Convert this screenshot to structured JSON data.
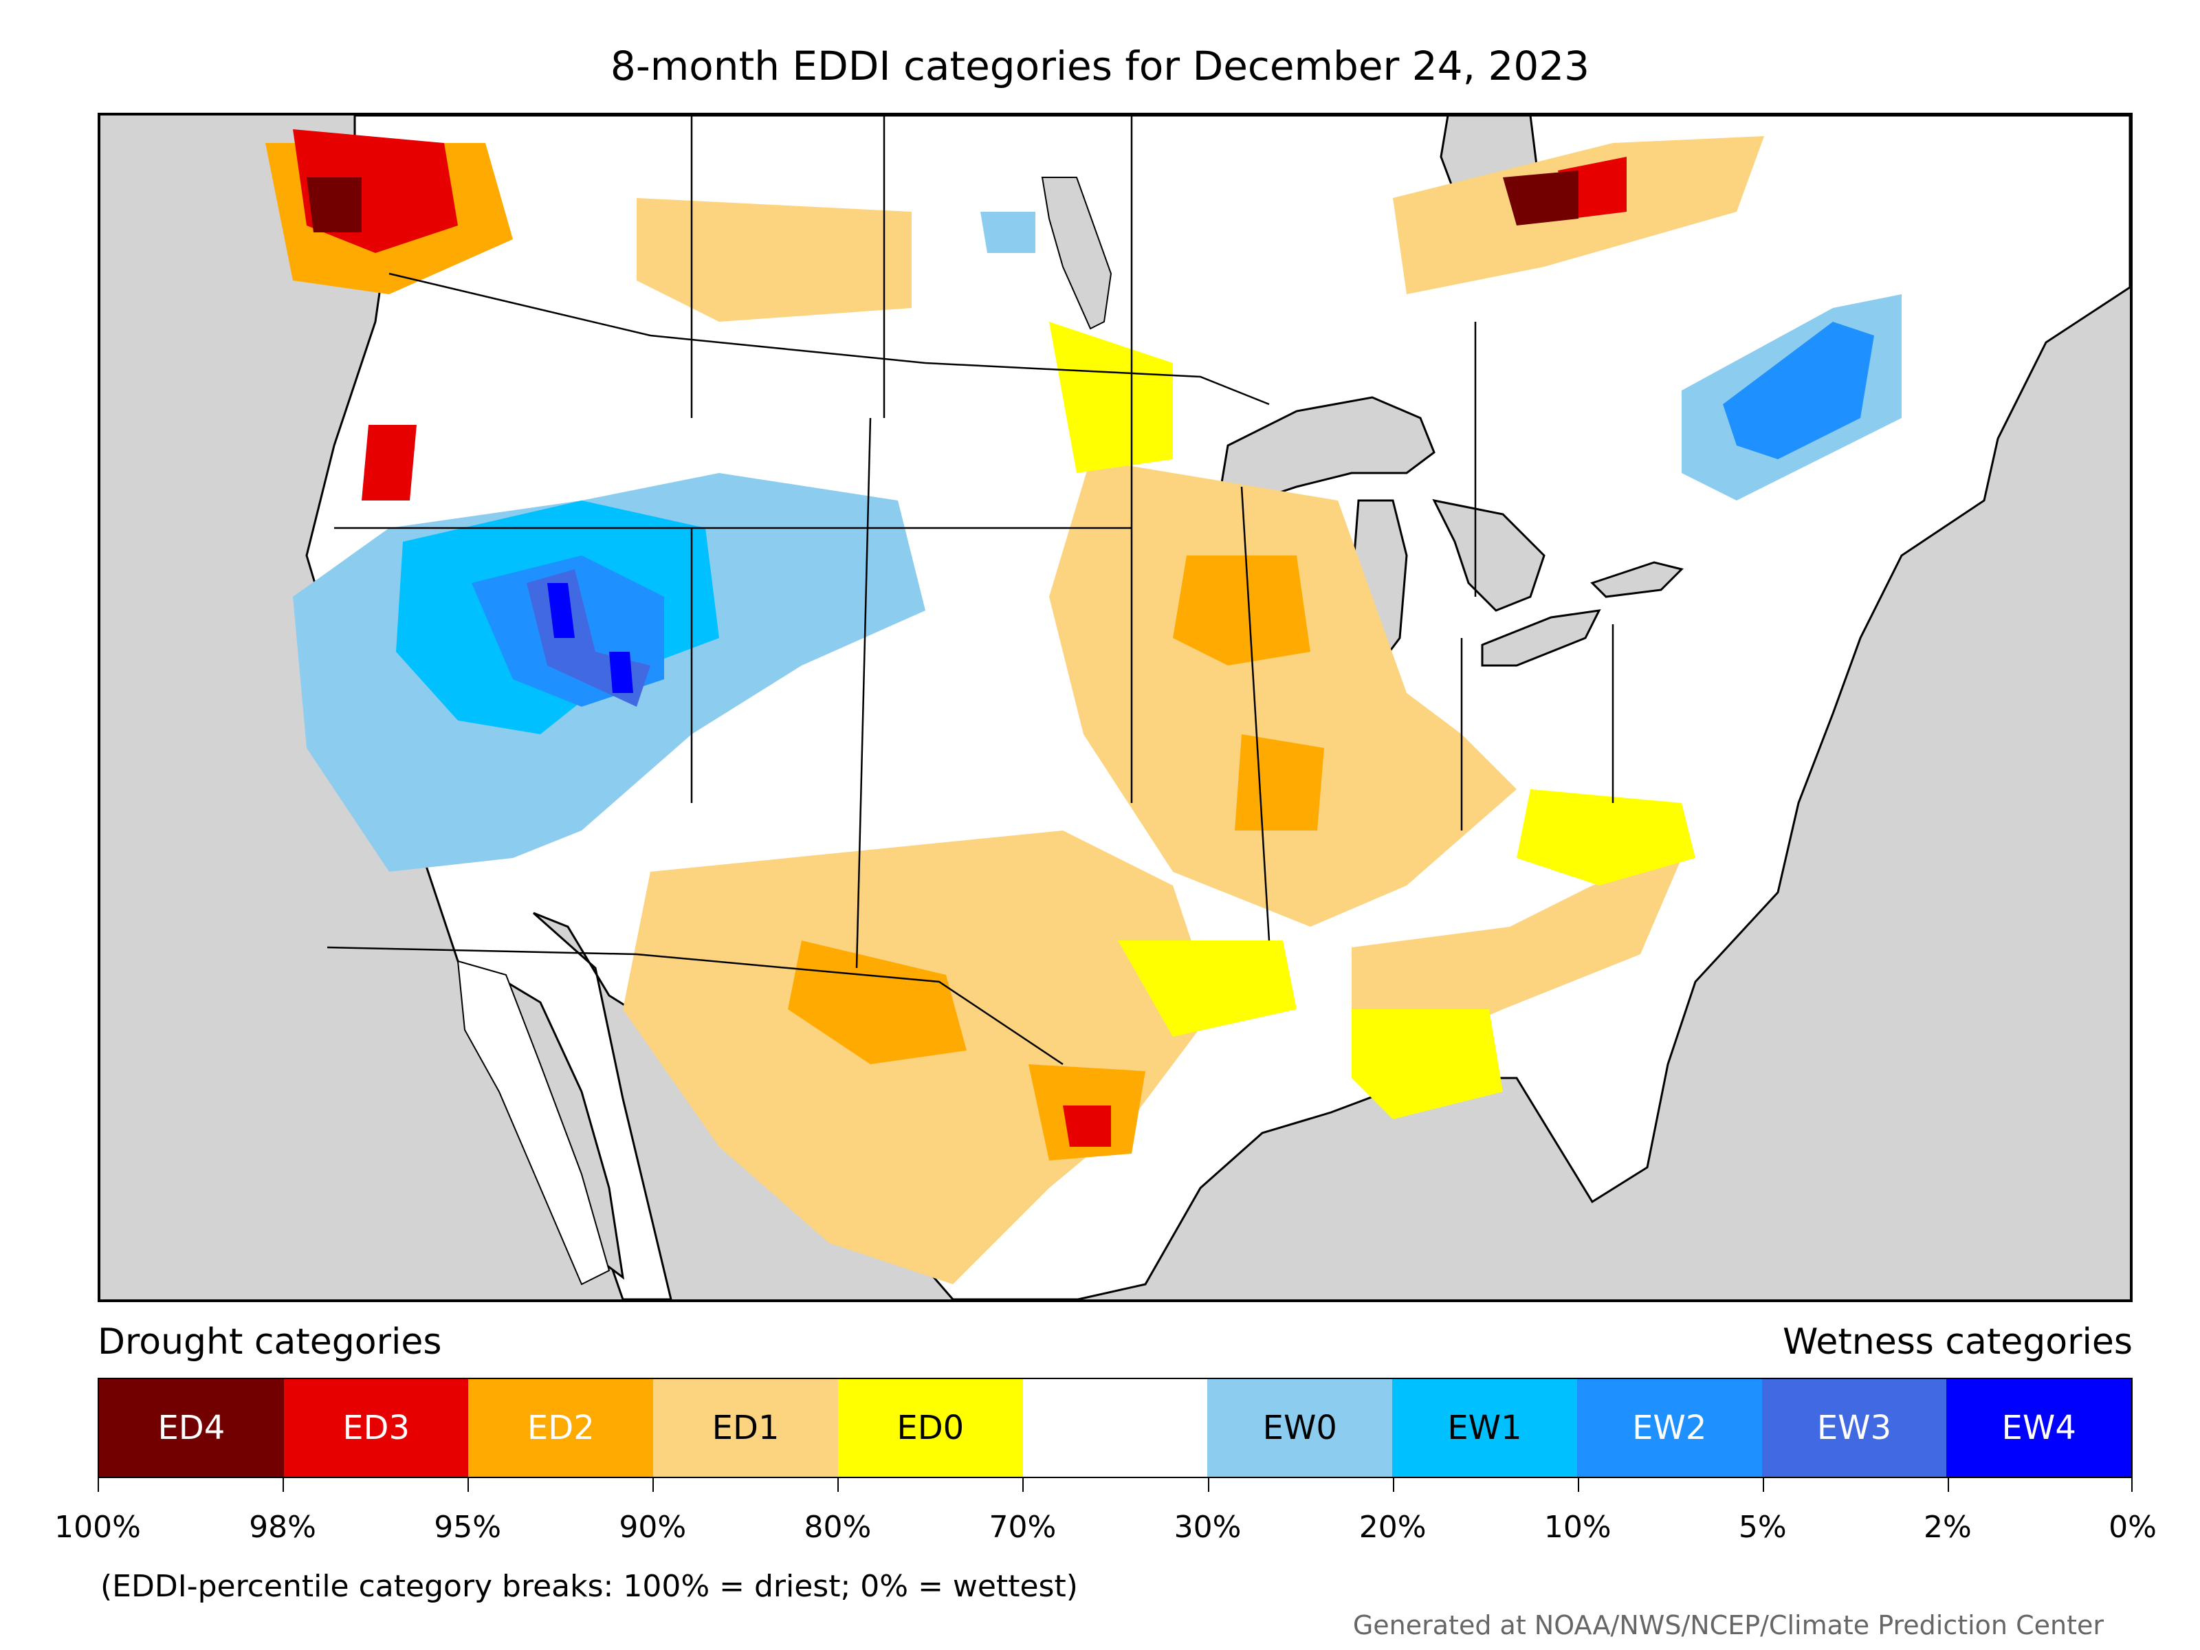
{
  "title": "8-month EDDI categories for December 24, 2023",
  "legend": {
    "drought_heading": "Drought categories",
    "wetness_heading": "Wetness categories",
    "categories": [
      {
        "label": "ED4",
        "color": "#730000",
        "text_color": "#ffffff"
      },
      {
        "label": "ED3",
        "color": "#e60000",
        "text_color": "#ffffff"
      },
      {
        "label": "ED2",
        "color": "#ffaa00",
        "text_color": "#ffffff"
      },
      {
        "label": "ED1",
        "color": "#fcd37f",
        "text_color": "#000000"
      },
      {
        "label": "ED0",
        "color": "#ffff00",
        "text_color": "#000000"
      },
      {
        "label": "",
        "color": "#ffffff",
        "text_color": "#000000"
      },
      {
        "label": "EW0",
        "color": "#8ccdef",
        "text_color": "#000000"
      },
      {
        "label": "EW1",
        "color": "#00c0ff",
        "text_color": "#000000"
      },
      {
        "label": "EW2",
        "color": "#1e90ff",
        "text_color": "#ffffff"
      },
      {
        "label": "EW3",
        "color": "#4169e1",
        "text_color": "#ffffff"
      },
      {
        "label": "EW4",
        "color": "#0000ff",
        "text_color": "#ffffff"
      }
    ],
    "breaks": [
      "100%",
      "98%",
      "95%",
      "90%",
      "80%",
      "70%",
      "30%",
      "20%",
      "10%",
      "5%",
      "2%",
      "0%"
    ]
  },
  "note": "(EDDI-percentile category breaks: 100% = driest; 0% = wettest)",
  "credit": "Generated at NOAA/NWS/NCEP/Climate Prediction Center",
  "map": {
    "background_color": "#d3d3d3",
    "land_color": "#ffffff",
    "water_color": "#d3d3d3"
  }
}
